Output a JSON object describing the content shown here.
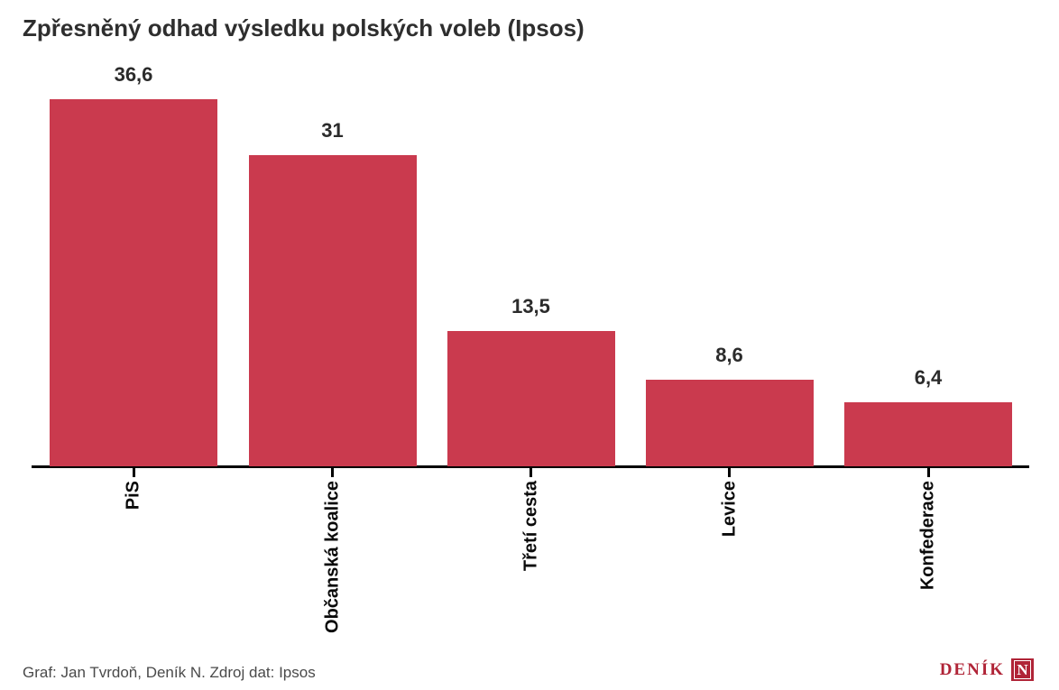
{
  "title": "Zpřesněný odhad výsledku polských voleb (Ipsos)",
  "chart_data": {
    "type": "bar",
    "title": "Zpřesněný odhad výsledku polských voleb (Ipsos)",
    "categories": [
      "PiS",
      "Občanská koalice",
      "Třetí cesta",
      "Levice",
      "Konfederace"
    ],
    "values": [
      36.6,
      31,
      13.5,
      8.6,
      6.4
    ],
    "value_labels": [
      "36,6",
      "31",
      "13,5",
      "8,6",
      "6,4"
    ],
    "xlabel": "",
    "ylabel": "",
    "ylim": [
      0,
      36.6
    ],
    "grid": false,
    "legend": false,
    "bar_color": "#ca3a4e",
    "orientation": "vertical",
    "category_label_rotation_deg": -90
  },
  "footer": {
    "credit": "Graf: Jan Tvrdoň, Deník N. Zdroj dat: Ipsos"
  },
  "logo": {
    "text": "DENÍK",
    "square_letter": "N"
  },
  "colors": {
    "bar": "#ca3a4e",
    "axis": "#000000",
    "title_text": "#2e2e2e",
    "value_label_text": "#2b2b2b",
    "category_label_text": "#0a0a0a",
    "footer_text": "#4a4a4a",
    "logo_red": "#b02437",
    "background": "#ffffff"
  }
}
